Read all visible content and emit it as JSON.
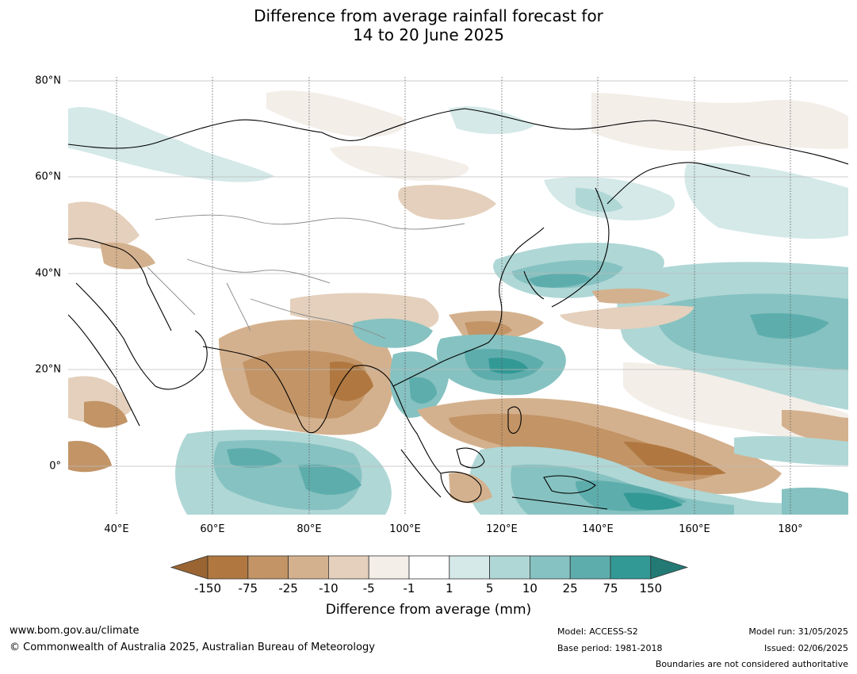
{
  "title": {
    "line1": "Difference from average rainfall forecast for",
    "line2": "14 to 20 June 2025"
  },
  "map": {
    "lat_ticks": [
      "80°N",
      "60°N",
      "40°N",
      "20°N",
      "0°"
    ],
    "lat_values": [
      80,
      60,
      40,
      20,
      0
    ],
    "lon_ticks": [
      "40°E",
      "60°E",
      "80°E",
      "100°E",
      "120°E",
      "140°E",
      "160°E",
      "180°"
    ],
    "lon_values": [
      40,
      60,
      80,
      100,
      120,
      140,
      160,
      180
    ],
    "extent": {
      "lon_min": 30,
      "lon_max": 192,
      "lat_min": -10,
      "lat_max": 81
    },
    "projection": "equirectangular",
    "gridlines": true
  },
  "colorbar": {
    "ticks": [
      "-150",
      "-75",
      "-25",
      "-10",
      "-5",
      "-1",
      "1",
      "5",
      "10",
      "25",
      "75",
      "150"
    ],
    "colors": [
      "#9a6532",
      "#b07840",
      "#c29466",
      "#d4b18e",
      "#e4d0bc",
      "#f3eee8",
      "#ffffff",
      "#d4e9e8",
      "#afd7d6",
      "#86c2c1",
      "#5eadad",
      "#339995",
      "#237a75"
    ],
    "extend": "both",
    "label": "Difference from average (mm)"
  },
  "footer": {
    "website": "www.bom.gov.au/climate",
    "copyright": "© Commonwealth of Australia 2025, Australian Bureau of Meteorology",
    "model": "Model: ACCESS-S2",
    "base_period": "Base period: 1981-2018",
    "model_run": "Model run: 31/05/2025",
    "issued": "Issued: 02/06/2025",
    "disclaimer": "Boundaries are not considered authoritative"
  }
}
